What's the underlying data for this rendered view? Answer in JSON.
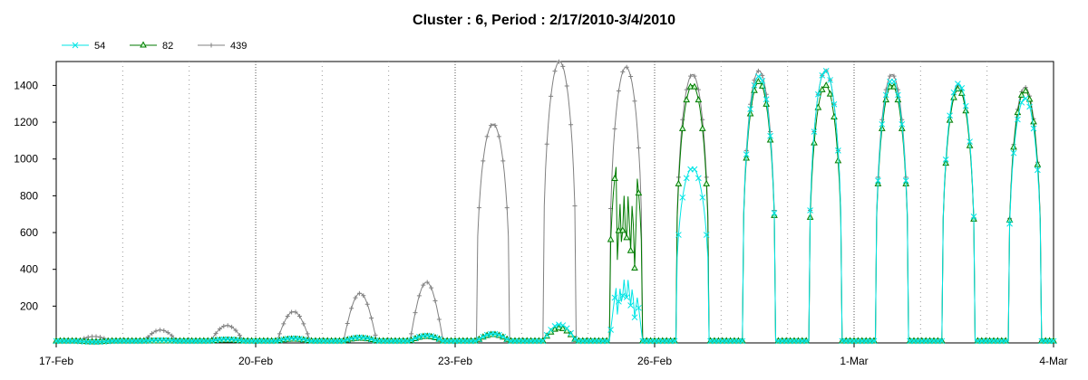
{
  "chart_data": {
    "type": "line",
    "title": "Cluster : 6, Period : 2/17/2010-3/4/2010",
    "xlabel": "",
    "ylabel": "",
    "x_ticks": [
      "17-Feb",
      "20-Feb",
      "23-Feb",
      "26-Feb",
      "1-Mar",
      "4-Mar"
    ],
    "y_ticks": [
      200,
      400,
      600,
      800,
      1000,
      1200,
      1400
    ],
    "ylim": [
      0,
      1530
    ],
    "xlim_days": [
      0,
      15
    ],
    "grid": "vertical dotted lines at each day, heavier at 3-day ticks",
    "legend": "top-left",
    "series": [
      {
        "name": "54",
        "color": "#00e5e5",
        "marker": "x",
        "day_peaks": [
          5,
          15,
          20,
          25,
          30,
          40,
          50,
          100,
          500,
          950,
          1450,
          1480,
          1430,
          1410,
          1330,
          1330
        ],
        "dip_days": [
          8
        ]
      },
      {
        "name": "82",
        "color": "#007a00",
        "marker": "triangle",
        "day_peaks": [
          5,
          10,
          15,
          20,
          25,
          35,
          45,
          80,
          1150,
          1400,
          1420,
          1400,
          1400,
          1380,
          1370,
          1380
        ],
        "dip_days": [
          8
        ]
      },
      {
        "name": "439",
        "color": "#808080",
        "marker": "plus",
        "day_peaks": [
          35,
          70,
          95,
          170,
          270,
          330,
          1190,
          1530,
          1500,
          1460,
          1480,
          1480,
          1460,
          1400,
          1390,
          1390
        ],
        "dip_days": []
      }
    ]
  }
}
